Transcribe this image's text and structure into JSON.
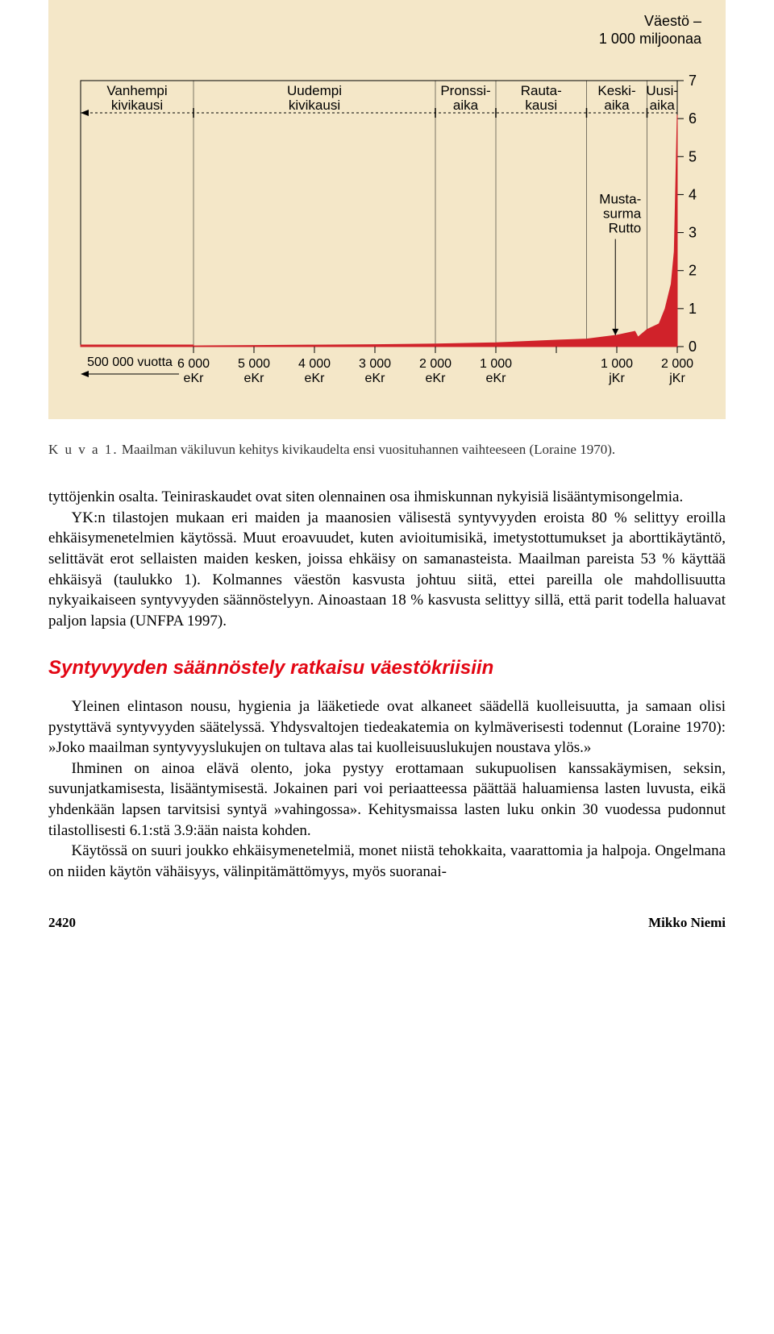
{
  "chart": {
    "type": "area",
    "background_color": "#f4e7c8",
    "plot_border_color": "#000000",
    "series_fill": "#d0222a",
    "series_stroke": "#d0222a",
    "annotation_line_color": "#000000",
    "tick_color": "#000000",
    "era_divider_color": "#000000",
    "era_dashed_line_color": "#000000",
    "y_axis": {
      "title_line1": "Väestö –",
      "title_line2": "1 000 miljoonaa",
      "font_size_title": 18,
      "ylim": [
        0,
        7
      ],
      "ticks": [
        0,
        1,
        2,
        3,
        4,
        5,
        6,
        7
      ],
      "font_size_ticks": 18
    },
    "x_axis": {
      "left_arrow_label": "500 000 vuotta",
      "ticks": [
        {
          "label_top": "6 000",
          "label_bottom": "eKr"
        },
        {
          "label_top": "5 000",
          "label_bottom": "eKr"
        },
        {
          "label_top": "4 000",
          "label_bottom": "eKr"
        },
        {
          "label_top": "3 000",
          "label_bottom": "eKr"
        },
        {
          "label_top": "2 000",
          "label_bottom": "eKr"
        },
        {
          "label_top": "1 000",
          "label_bottom": "eKr"
        },
        {
          "label_top": "",
          "label_bottom": ""
        },
        {
          "label_top": "1 000",
          "label_bottom": "jKr"
        },
        {
          "label_top": "2 000",
          "label_bottom": "jKr"
        }
      ],
      "font_size_ticks": 16
    },
    "eras": [
      {
        "line1": "Vanhempi",
        "line2": "kivikausi"
      },
      {
        "line1": "Uudempi",
        "line2": "kivikausi"
      },
      {
        "line1": "Pronssi-",
        "line2": "aika"
      },
      {
        "line1": "Rauta-",
        "line2": "kausi"
      },
      {
        "line1": "Keski-",
        "line2": "aika"
      },
      {
        "line1": "Uusi-",
        "line2": "aika"
      }
    ],
    "era_font_size": 17,
    "annotation": {
      "line1": "Musta-",
      "line2": "surma",
      "line3": "Rutto",
      "font_size": 17
    },
    "data_points": [
      {
        "x": -6000,
        "y": 0.02
      },
      {
        "x": -5000,
        "y": 0.03
      },
      {
        "x": -4000,
        "y": 0.04
      },
      {
        "x": -3000,
        "y": 0.05
      },
      {
        "x": -2000,
        "y": 0.07
      },
      {
        "x": -1000,
        "y": 0.1
      },
      {
        "x": 0,
        "y": 0.17
      },
      {
        "x": 500,
        "y": 0.2
      },
      {
        "x": 1000,
        "y": 0.3
      },
      {
        "x": 1300,
        "y": 0.4
      },
      {
        "x": 1350,
        "y": 0.25
      },
      {
        "x": 1500,
        "y": 0.45
      },
      {
        "x": 1700,
        "y": 0.6
      },
      {
        "x": 1800,
        "y": 1.0
      },
      {
        "x": 1900,
        "y": 1.65
      },
      {
        "x": 1950,
        "y": 2.5
      },
      {
        "x": 2000,
        "y": 6.1
      }
    ]
  },
  "caption": {
    "label": "K u v a  1.",
    "text": "Maailman väkiluvun kehitys kivikaudelta ensi vuosituhannen vaihteeseen (Loraine 1970)."
  },
  "paragraphs": {
    "p1": "tyttöjenkin osalta. Teiniraskaudet ovat siten olennainen osa ihmiskunnan nykyisiä lisääntymisongelmia.",
    "p2": "YK:n tilastojen mukaan eri maiden ja maanosien välisestä syntyvyyden eroista 80 % selittyy eroilla ehkäisymenetelmien käytössä. Muut eroavuudet, kuten avioitumisikä, imetystottumukset ja aborttikäytäntö, selittävät erot sellaisten maiden kesken, joissa ehkäisy on samanasteista. Maailman pareista 53 % käyttää ehkäisyä (taulukko 1). Kolmannes väestön kasvusta johtuu siitä, ettei pareilla ole mahdollisuutta nykyaikaiseen syntyvyyden säännöstelyyn. Ainoastaan 18 % kasvusta selittyy sillä, että parit todella haluavat paljon lapsia (UNFPA 1997).",
    "section_heading": "Syntyvyyden säännöstely ratkaisu väestökriisiin",
    "p3": "Yleinen elintason nousu, hygienia ja lääketiede ovat alkaneet säädellä kuolleisuutta, ja samaan olisi pystyttävä syntyvyyden säätelyssä. Yhdysvaltojen tiedeakatemia on kylmäverisesti todennut (Loraine 1970): »Joko maailman syntyvyyslukujen on tultava alas tai kuolleisuuslukujen noustava ylös.»",
    "p4": "Ihminen on ainoa elävä olento, joka pystyy erottamaan sukupuolisen kanssakäymisen, seksin, suvunjatkamisesta, lisääntymisestä. Jokainen pari voi periaatteessa päättää haluamiensa lasten luvusta, eikä yhdenkään lapsen tarvitsisi syntyä »vahingossa». Kehitysmaissa lasten luku onkin 30 vuodessa pudonnut tilastollisesti 6.1:stä 3.9:ään naista kohden.",
    "p5": "Käytössä on suuri joukko ehkäisymenetelmiä, monet niistä tehokkaita, vaarattomia ja halpoja. Ongelmana on niiden käytön vähäisyys, välinpitämättömyys, myös suoranai-"
  },
  "footer": {
    "page": "2420",
    "author": "Mikko Niemi"
  }
}
